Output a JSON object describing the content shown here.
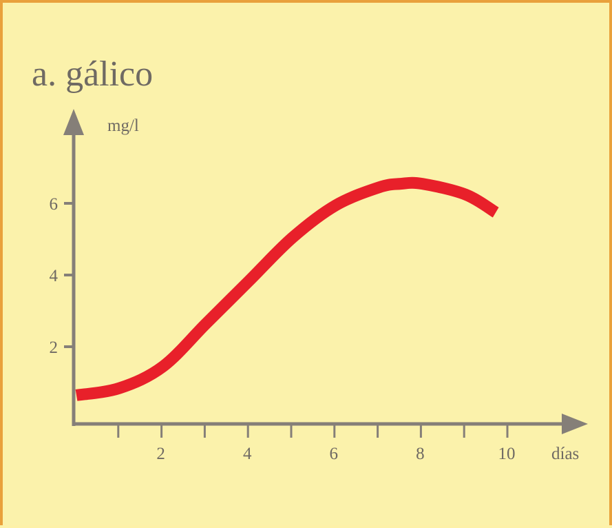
{
  "chart_data": {
    "type": "line",
    "title": "a. gálico",
    "xlabel": "días",
    "ylabel": "mg/l",
    "xlim": [
      0,
      10
    ],
    "ylim": [
      0,
      7.5
    ],
    "x_tick_labels": [
      {
        "value": 2,
        "label": "2"
      },
      {
        "value": 4,
        "label": "4"
      },
      {
        "value": 6,
        "label": "6"
      },
      {
        "value": 8,
        "label": "8"
      },
      {
        "value": 10,
        "label": "10"
      }
    ],
    "x_minor_ticks": [
      1,
      2,
      3,
      4,
      5,
      6,
      7,
      8,
      9,
      10
    ],
    "y_tick_labels": [
      {
        "value": 2,
        "label": "2"
      },
      {
        "value": 4,
        "label": "4"
      },
      {
        "value": 6,
        "label": "6"
      }
    ],
    "series": [
      {
        "color": "#e8202a",
        "x": [
          0.0,
          1.0,
          2.0,
          3.0,
          4.0,
          5.0,
          6.0,
          7.0,
          7.5,
          8.0,
          9.0,
          9.7
        ],
        "y": [
          0.8,
          1.0,
          1.6,
          2.8,
          4.0,
          5.2,
          6.1,
          6.6,
          6.7,
          6.7,
          6.4,
          5.9
        ]
      }
    ],
    "grid": false,
    "legend": "none"
  },
  "colors": {
    "axis": "#857f78",
    "text": "#6f6a63",
    "line": "#e8202a",
    "background": "#fbf2ab",
    "border": "#e9a13c"
  }
}
